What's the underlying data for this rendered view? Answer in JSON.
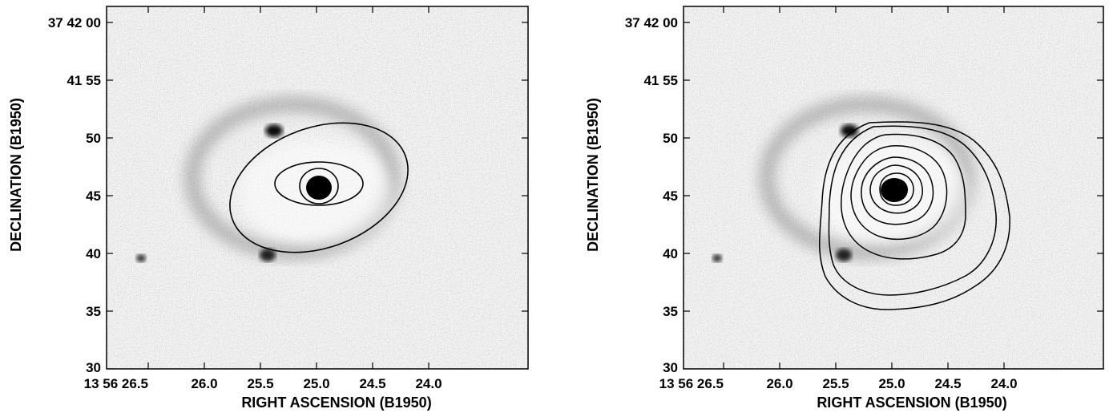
{
  "panels": [
    {
      "id": "left",
      "xlabel": "RIGHT ASCENSION (B1950)",
      "ylabel": "DECLINATION (B1950)",
      "x_tick_labels": [
        "13 56 26.5",
        "26.0",
        "25.5",
        "25.0",
        "24.5",
        "24.0"
      ],
      "y_tick_labels": [
        "37 42 00",
        "41 55",
        "50",
        "45",
        "40",
        "35",
        "30"
      ],
      "overlay": "ellipses"
    },
    {
      "id": "right",
      "xlabel": "RIGHT ASCENSION (B1950)",
      "ylabel": "DECLINATION (B1950)",
      "x_tick_labels": [
        "13 56 26.5",
        "26.0",
        "25.5",
        "25.0",
        "24.5",
        "24.0"
      ],
      "y_tick_labels": [
        "37 42 00",
        "41 55",
        "50",
        "45",
        "40",
        "35",
        "30"
      ],
      "overlay": "contours"
    }
  ],
  "colors": {
    "background": "#ffffff",
    "ink": "#000000"
  }
}
